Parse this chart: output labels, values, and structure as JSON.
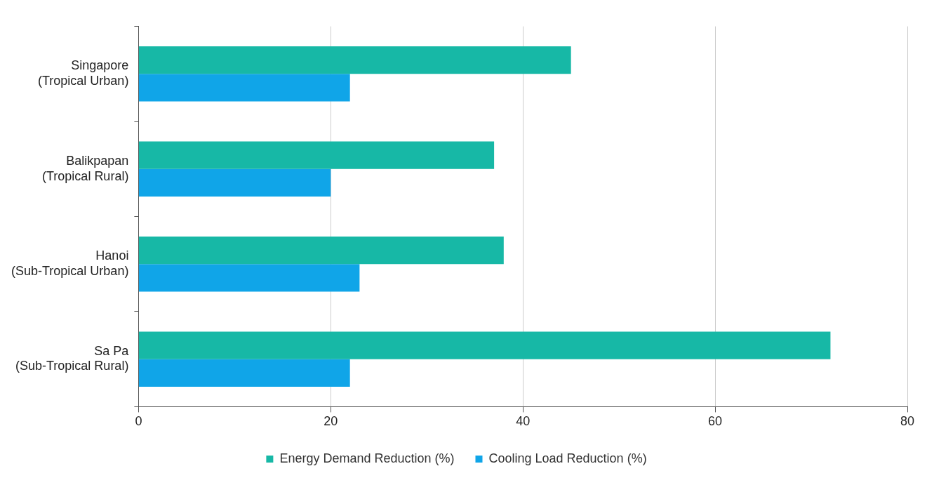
{
  "chart_data": {
    "type": "bar",
    "orientation": "horizontal",
    "categories": [
      "Singapore\n(Tropical Urban)",
      "Balikpapan\n(Tropical Rural)",
      "Hanoi\n(Sub-Tropical Urban)",
      "Sa Pa\n(Sub-Tropical Rural)"
    ],
    "series": [
      {
        "name": "Energy Demand Reduction (%)",
        "color": "#17b8a6",
        "values": [
          45,
          37,
          38,
          72
        ]
      },
      {
        "name": "Cooling Load Reduction (%)",
        "color": "#10a5e8",
        "values": [
          22,
          20,
          23,
          22
        ]
      }
    ],
    "xlim": [
      0,
      80
    ],
    "xticks": [
      0,
      20,
      40,
      60,
      80
    ],
    "grid": "x",
    "legend": "bottom"
  }
}
